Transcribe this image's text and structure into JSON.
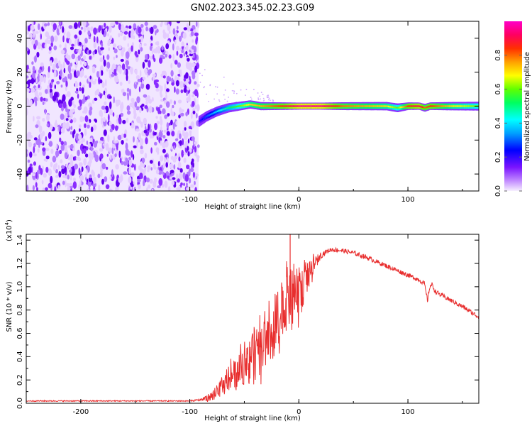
{
  "title": "GN02.2023.345.02.23.G09",
  "colors": {
    "axis": "#000000",
    "plot_bg": "#ffffff",
    "snr_line": "#e82e2e",
    "noise_purple": "#6a00ff",
    "colorbar": [
      "#ff00c8",
      "#ff0000",
      "#ffa500",
      "#ffff00",
      "#00ff00",
      "#00ffff",
      "#0000ff",
      "#9b00ff",
      "#ff00ff"
    ]
  },
  "chart_data": [
    {
      "type": "heatmap",
      "title": "",
      "xlabel": "Height of straight line (km)",
      "ylabel": "Frequency (Hz)",
      "xlim": [
        -250,
        165
      ],
      "ylim": [
        -50,
        50
      ],
      "xticks": [
        -200,
        -100,
        0,
        100
      ],
      "yticks": [
        -40,
        -20,
        0,
        20,
        40
      ],
      "noise_region_x": [
        -250,
        -92
      ],
      "signal_track": {
        "x": [
          -92,
          -85,
          -75,
          -65,
          -55,
          -45,
          -35,
          -25,
          -15,
          0,
          20,
          40,
          60,
          80,
          90,
          100,
          110,
          115,
          120,
          140,
          165
        ],
        "y": [
          -9,
          -6,
          -3,
          -1,
          0,
          1,
          0,
          0,
          0,
          0,
          0,
          0,
          0,
          0,
          -1,
          0,
          0,
          -1,
          0,
          0,
          0
        ],
        "amplitude": [
          0.2,
          0.3,
          0.4,
          0.5,
          0.6,
          0.7,
          0.75,
          0.8,
          0.85,
          0.95,
          0.95,
          0.8,
          0.75,
          0.7,
          0.6,
          0.85,
          0.9,
          0.8,
          0.85,
          0.7,
          0.6
        ]
      },
      "colorbar": {
        "label": "Normalized spectral amplitude",
        "range": [
          0,
          1
        ],
        "ticks": [
          "0.0",
          "0.2",
          "0.4",
          "0.6",
          "0.8"
        ],
        "tick_values": [
          0,
          0.2,
          0.4,
          0.6,
          0.8
        ]
      }
    },
    {
      "type": "line",
      "title": "",
      "xlabel": "Height of straight line (km)",
      "ylabel": "SNR (10 * v/v)",
      "y_multiplier": "(x10",
      "y_multiplier_exp": "4",
      "y_multiplier_close": ")",
      "xlim": [
        -250,
        165
      ],
      "ylim": [
        0,
        1.45
      ],
      "xticks": [
        -200,
        -100,
        0,
        100
      ],
      "yticks": [
        "0.0",
        "0.2",
        "0.4",
        "0.6",
        "0.8",
        "1.0",
        "1.2",
        "1.4"
      ],
      "ytick_values": [
        0,
        0.2,
        0.4,
        0.6,
        0.8,
        1.0,
        1.2,
        1.4
      ],
      "series": [
        {
          "x": [
            -250,
            -230,
            -210,
            -190,
            -170,
            -150,
            -130,
            -110,
            -100,
            -90,
            -80,
            -70,
            -60,
            -50,
            -40,
            -30,
            -20,
            -15,
            -10,
            -5,
            0,
            5,
            10,
            15,
            20,
            25,
            30,
            40,
            50,
            60,
            70,
            80,
            90,
            100,
            110,
            115,
            118,
            120,
            122,
            125,
            130,
            140,
            150,
            160,
            165
          ],
          "y": [
            0.02,
            0.02,
            0.02,
            0.02,
            0.02,
            0.02,
            0.02,
            0.02,
            0.02,
            0.03,
            0.06,
            0.14,
            0.24,
            0.32,
            0.42,
            0.55,
            0.68,
            0.78,
            0.88,
            0.86,
            0.95,
            1.02,
            1.1,
            1.2,
            1.27,
            1.3,
            1.32,
            1.31,
            1.29,
            1.26,
            1.22,
            1.18,
            1.14,
            1.1,
            1.06,
            1.03,
            0.88,
            1.0,
            1.02,
            0.96,
            0.93,
            0.88,
            0.83,
            0.77,
            0.74
          ],
          "spike_x": [
            -8
          ],
          "spike_y": [
            1.45
          ],
          "noise": [
            0.005,
            0.005,
            0.005,
            0.005,
            0.005,
            0.005,
            0.005,
            0.005,
            0.005,
            0.01,
            0.04,
            0.08,
            0.12,
            0.16,
            0.22,
            0.26,
            0.3,
            0.32,
            0.3,
            0.28,
            0.22,
            0.16,
            0.12,
            0.06,
            0.03,
            0.02,
            0.02,
            0.02,
            0.02,
            0.02,
            0.02,
            0.02,
            0.02,
            0.02,
            0.02,
            0.02,
            0.02,
            0.02,
            0.02,
            0.02,
            0.02,
            0.02,
            0.02,
            0.02,
            0.02
          ]
        }
      ]
    }
  ]
}
